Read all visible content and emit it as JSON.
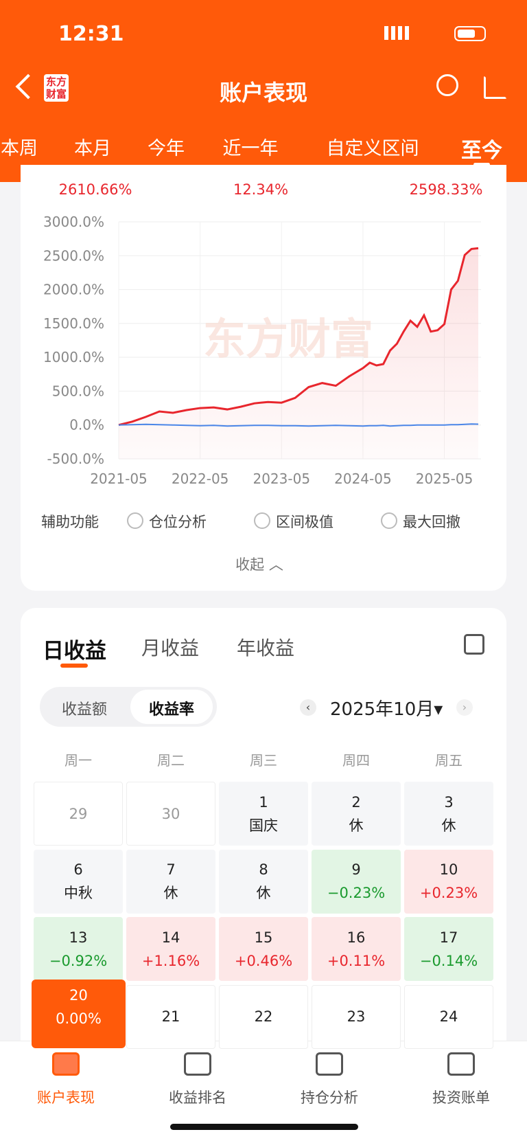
{
  "status_bar": {
    "time": "12:31"
  },
  "header": {
    "logo": [
      "东方",
      "财富"
    ],
    "title": "账户表现"
  },
  "period_tabs": {
    "items": [
      "本周",
      "本月",
      "今年",
      "近一年",
      "自定义区间",
      "至今"
    ],
    "selected": 5
  },
  "summary": [
    "2610.66%",
    "12.34%",
    "2598.33%"
  ],
  "chart_data": {
    "type": "line",
    "x": [
      "2021-05",
      "2021-07",
      "2021-09",
      "2021-11",
      "2022-01",
      "2022-03",
      "2022-05",
      "2022-07",
      "2022-09",
      "2022-11",
      "2023-01",
      "2023-03",
      "2023-05",
      "2023-07",
      "2023-09",
      "2023-11",
      "2024-01",
      "2024-03",
      "2024-05",
      "2024-06",
      "2024-07",
      "2024-08",
      "2024-09",
      "2024-10",
      "2024-11",
      "2024-12",
      "2025-01",
      "2025-02",
      "2025-03",
      "2025-04",
      "2025-05",
      "2025-06",
      "2025-07",
      "2025-08",
      "2025-09",
      "2025-10"
    ],
    "series": [
      {
        "color": "#e8262d",
        "values": [
          0,
          50,
          120,
          200,
          180,
          220,
          250,
          260,
          230,
          270,
          320,
          340,
          330,
          400,
          560,
          620,
          580,
          720,
          840,
          920,
          880,
          900,
          1100,
          1200,
          1380,
          1540,
          1450,
          1620,
          1380,
          1400,
          1490,
          2000,
          2130,
          2510,
          2600,
          2610.66
        ]
      },
      {
        "color": "#4a86e8",
        "values": [
          0,
          5,
          10,
          5,
          0,
          -5,
          -10,
          -5,
          -15,
          -10,
          -5,
          -5,
          -10,
          -10,
          -15,
          -10,
          -5,
          -10,
          -15,
          -10,
          -10,
          -5,
          -15,
          -10,
          -5,
          -5,
          0,
          0,
          0,
          0,
          0,
          5,
          5,
          10,
          15,
          12.34
        ]
      }
    ],
    "ylim": [
      -500,
      3000
    ],
    "yticks": [
      {
        "value": -500,
        "label": "-500.0%"
      },
      {
        "value": 0,
        "label": "0.0%"
      },
      {
        "value": 500,
        "label": "500.0%"
      },
      {
        "value": 1000,
        "label": "1000.0%"
      },
      {
        "value": 1500,
        "label": "1500.0%"
      },
      {
        "value": 2000,
        "label": "2000.0%"
      },
      {
        "value": 2500,
        "label": "2500.0%"
      },
      {
        "value": 3000,
        "label": "3000.0%"
      }
    ],
    "xticks": [
      "2021-05",
      "2022-05",
      "2023-05",
      "2024-05",
      "2025-05"
    ],
    "grid": true,
    "watermark": "东方财富"
  },
  "aux": {
    "label": "辅助功能",
    "options": [
      "仓位分析",
      "区间极值",
      "最大回撤"
    ]
  },
  "collapse": "收起",
  "returns": {
    "tabs": [
      "日收益",
      "月收益",
      "年收益"
    ],
    "selected": 0,
    "toggle": [
      "收益额",
      "收益率"
    ],
    "toggle_selected": 1,
    "month": "2025年10月",
    "weekdays": [
      "周一",
      "周二",
      "周三",
      "周四",
      "周五"
    ],
    "cells": [
      {
        "day": 29,
        "kind": "other"
      },
      {
        "day": 30,
        "kind": "other"
      },
      {
        "day": 1,
        "note": "国庆",
        "kind": "rest"
      },
      {
        "day": 2,
        "note": "休",
        "kind": "rest"
      },
      {
        "day": 3,
        "note": "休",
        "kind": "rest"
      },
      {
        "day": 6,
        "note": "中秋",
        "kind": "rest"
      },
      {
        "day": 7,
        "note": "休",
        "kind": "rest"
      },
      {
        "day": 8,
        "note": "休",
        "kind": "rest"
      },
      {
        "day": 9,
        "note": "−0.23%",
        "kind": "down"
      },
      {
        "day": 10,
        "note": "+0.23%",
        "kind": "up"
      },
      {
        "day": 13,
        "note": "−0.92%",
        "kind": "down"
      },
      {
        "day": 14,
        "note": "+1.16%",
        "kind": "up"
      },
      {
        "day": 15,
        "note": "+0.46%",
        "kind": "up"
      },
      {
        "day": 16,
        "note": "+0.11%",
        "kind": "up"
      },
      {
        "day": 17,
        "note": "−0.14%",
        "kind": "down"
      },
      {
        "day": 20,
        "note": "0.00%",
        "kind": "today"
      },
      {
        "day": 21,
        "kind": "future"
      },
      {
        "day": 22,
        "kind": "future"
      },
      {
        "day": 23,
        "kind": "future"
      },
      {
        "day": 24,
        "kind": "future"
      }
    ]
  },
  "bottom_nav": {
    "items": [
      "账户表现",
      "收益排名",
      "持仓分析",
      "投资账单"
    ],
    "selected": 0
  }
}
